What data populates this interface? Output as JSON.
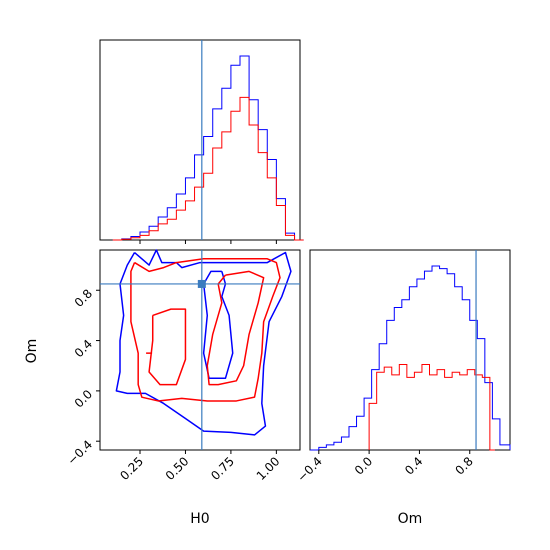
{
  "colors": {
    "blue": "#0000ff",
    "red": "#ff0000",
    "truth": "#3a7bbf",
    "axis": "#000000"
  },
  "chart_data": {
    "type": "corner",
    "truth": {
      "H0": 0.59,
      "Om": 0.85
    },
    "panels": [
      {
        "id": "H0-marginal",
        "type": "histogram",
        "xlabel": "",
        "xlim": [
          0.03,
          1.13
        ],
        "truth_x": 0.59,
        "bins": [
          0.1,
          0.15,
          0.2,
          0.25,
          0.3,
          0.35,
          0.4,
          0.45,
          0.5,
          0.55,
          0.6,
          0.65,
          0.7,
          0.75,
          0.8,
          0.85,
          0.9,
          0.95,
          1.0,
          1.05,
          1.1
        ],
        "series": [
          {
            "color": "blue",
            "counts": [
              0,
              0.5,
              1.5,
              3.5,
              6,
              10,
              14,
              20,
              27,
              37,
              45,
              57,
              66,
              76,
              80,
              61,
              48,
              35,
              18,
              3,
              0
            ]
          },
          {
            "color": "red",
            "counts": [
              0,
              0.3,
              1,
              2,
              4,
              7,
              9,
              13,
              17,
              23,
              29,
              40,
              47,
              56,
              62,
              50,
              38,
              27,
              15,
              2,
              0
            ]
          }
        ]
      },
      {
        "id": "Om-marginal",
        "type": "histogram",
        "xlabel": "Om",
        "xlim": [
          -0.47,
          1.12
        ],
        "xticks": [
          -0.4,
          0.0,
          0.4,
          0.8
        ],
        "xtick_labels": [
          "−0.4",
          "0.0",
          "0.4",
          "0.8"
        ],
        "truth_x": 0.85,
        "series": [
          {
            "color": "blue",
            "edges": [
              -0.47,
              -0.4,
              -0.34,
              -0.28,
              -0.22,
              -0.16,
              -0.1,
              -0.04,
              0.02,
              0.08,
              0.14,
              0.2,
              0.26,
              0.32,
              0.38,
              0.44,
              0.5,
              0.56,
              0.62,
              0.68,
              0.74,
              0.8,
              0.86,
              0.92,
              0.98,
              1.04,
              1.12
            ],
            "counts": [
              0,
              1,
              2,
              3,
              5,
              9,
              13,
              20,
              31,
              41,
              50,
              55,
              58,
              63,
              66,
              69,
              71,
              70,
              68,
              63,
              58,
              50,
              43,
              26,
              12,
              2
            ]
          },
          {
            "color": "red",
            "edges": [
              0.0,
              0.06,
              0.12,
              0.18,
              0.24,
              0.3,
              0.36,
              0.42,
              0.48,
              0.54,
              0.6,
              0.66,
              0.72,
              0.78,
              0.84,
              0.9,
              0.96,
              1.0
            ],
            "counts": [
              18,
              30,
              32,
              29,
              33,
              28,
              30,
              33,
              29,
              31,
              28,
              30,
              29,
              31,
              29,
              28,
              0
            ]
          }
        ]
      },
      {
        "id": "joint",
        "type": "contour",
        "xlabel": "H0",
        "ylabel": "Om",
        "xlim": [
          0.03,
          1.13
        ],
        "ylim": [
          -0.47,
          1.12
        ],
        "xticks": [
          0.25,
          0.5,
          0.75,
          1.0
        ],
        "xtick_labels": [
          "0.25",
          "0.50",
          "0.75",
          "1.00"
        ],
        "yticks": [
          -0.4,
          0.0,
          0.4,
          0.8
        ],
        "ytick_labels": [
          "−0.4",
          "0.0",
          "0.4",
          "0.8"
        ],
        "truth_point": [
          0.59,
          0.85
        ],
        "contours": [
          {
            "color": "blue",
            "level": "outer",
            "points": [
              [
                0.22,
                1.1
              ],
              [
                0.3,
                1.0
              ],
              [
                0.34,
                1.12
              ],
              [
                0.37,
                1.02
              ],
              [
                0.45,
                1.02
              ],
              [
                0.48,
                0.98
              ],
              [
                0.58,
                1.02
              ],
              [
                0.75,
                1.02
              ],
              [
                0.95,
                1.02
              ],
              [
                1.05,
                1.1
              ],
              [
                1.08,
                0.95
              ],
              [
                1.03,
                0.75
              ],
              [
                0.96,
                0.55
              ],
              [
                0.93,
                0.2
              ],
              [
                0.92,
                -0.1
              ],
              [
                0.94,
                -0.28
              ],
              [
                0.88,
                -0.35
              ],
              [
                0.75,
                -0.33
              ],
              [
                0.6,
                -0.32
              ],
              [
                0.5,
                -0.22
              ],
              [
                0.38,
                -0.1
              ],
              [
                0.28,
                -0.02
              ],
              [
                0.18,
                -0.02
              ],
              [
                0.12,
                0.0
              ],
              [
                0.14,
                0.15
              ],
              [
                0.14,
                0.4
              ],
              [
                0.16,
                0.6
              ],
              [
                0.14,
                0.85
              ],
              [
                0.18,
                1.0
              ],
              [
                0.22,
                1.1
              ]
            ]
          },
          {
            "color": "blue",
            "level": "inner",
            "points": [
              [
                0.7,
                0.95
              ],
              [
                0.72,
                0.85
              ],
              [
                0.7,
                0.75
              ],
              [
                0.74,
                0.6
              ],
              [
                0.76,
                0.3
              ],
              [
                0.72,
                0.1
              ],
              [
                0.63,
                0.1
              ],
              [
                0.6,
                0.3
              ],
              [
                0.62,
                0.6
              ],
              [
                0.6,
                0.85
              ],
              [
                0.64,
                0.95
              ],
              [
                0.7,
                0.95
              ]
            ]
          },
          {
            "color": "red",
            "level": "outer",
            "points": [
              [
                0.22,
                1.02
              ],
              [
                0.3,
                0.95
              ],
              [
                0.38,
                0.98
              ],
              [
                0.45,
                1.02
              ],
              [
                0.6,
                1.05
              ],
              [
                0.8,
                1.05
              ],
              [
                0.95,
                1.05
              ],
              [
                1.0,
                1.02
              ],
              [
                1.02,
                0.9
              ],
              [
                0.98,
                0.75
              ],
              [
                0.93,
                0.55
              ],
              [
                0.92,
                0.3
              ],
              [
                0.9,
                0.1
              ],
              [
                0.88,
                -0.05
              ],
              [
                0.78,
                -0.08
              ],
              [
                0.62,
                -0.08
              ],
              [
                0.48,
                -0.06
              ],
              [
                0.35,
                -0.08
              ],
              [
                0.26,
                -0.05
              ],
              [
                0.24,
                0.05
              ],
              [
                0.24,
                0.3
              ],
              [
                0.2,
                0.55
              ],
              [
                0.2,
                0.8
              ],
              [
                0.2,
                0.95
              ],
              [
                0.22,
                1.02
              ]
            ]
          },
          {
            "color": "red",
            "level": "inner",
            "points": [
              [
                0.32,
                0.6
              ],
              [
                0.42,
                0.65
              ],
              [
                0.5,
                0.65
              ],
              [
                0.5,
                0.45
              ],
              [
                0.5,
                0.25
              ],
              [
                0.45,
                0.05
              ],
              [
                0.36,
                0.05
              ],
              [
                0.3,
                0.15
              ],
              [
                0.32,
                0.4
              ],
              [
                0.32,
                0.6
              ]
            ]
          },
          {
            "color": "red",
            "level": "inner",
            "points": [
              [
                0.72,
                0.92
              ],
              [
                0.85,
                0.95
              ],
              [
                0.93,
                0.9
              ],
              [
                0.9,
                0.7
              ],
              [
                0.85,
                0.45
              ],
              [
                0.82,
                0.2
              ],
              [
                0.78,
                0.08
              ],
              [
                0.68,
                0.05
              ],
              [
                0.63,
                0.05
              ],
              [
                0.62,
                0.2
              ],
              [
                0.65,
                0.45
              ],
              [
                0.7,
                0.7
              ],
              [
                0.68,
                0.85
              ],
              [
                0.72,
                0.92
              ]
            ]
          }
        ]
      }
    ]
  }
}
